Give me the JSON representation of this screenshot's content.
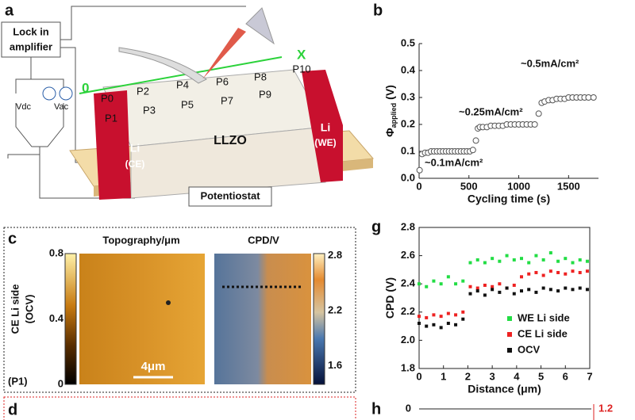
{
  "panel_labels": [
    "a",
    "b",
    "c",
    "g",
    "d",
    "h"
  ],
  "diagram": {
    "lock_in": "Lock in",
    "amplifier": "amplifier",
    "vdc": "Vdc",
    "vac": "Vac",
    "origin": "0",
    "axis": "X",
    "points": [
      "P0",
      "P1",
      "P2",
      "P3",
      "P4",
      "P5",
      "P6",
      "P7",
      "P8",
      "P9",
      "P10"
    ],
    "material": "LLZO",
    "ce": [
      "Li",
      "(CE)"
    ],
    "we": [
      "Li",
      "(WE)"
    ],
    "potentiostat": "Potentiostat"
  },
  "maps": {
    "row_label": [
      "CE Li side",
      "(OCV)"
    ],
    "point": "(P1)",
    "scale_bar": "4μm",
    "topography": {
      "title": "Topography/μm",
      "lim": [
        0,
        0.8
      ],
      "ticks": [
        0.8,
        0.4,
        0
      ]
    },
    "cpd": {
      "title": "CPD/V",
      "lim": [
        1.4,
        2.82
      ],
      "ticks": [
        2.8,
        2.2,
        1.6
      ]
    }
  },
  "panel_h": {
    "left_tick": "0",
    "right_tick": "1.2"
  },
  "chart_data": [
    {
      "type": "scatter",
      "xlabel": "Cycling time (s)",
      "ylabel": [
        "Φ",
        "applied",
        "(V)"
      ],
      "xlim": [
        0,
        1800
      ],
      "xticks": [
        0,
        500,
        1000,
        1500
      ],
      "ylim": [
        0,
        0.5
      ],
      "yticks": [
        {
          "value": 0,
          "label": "0.0"
        },
        0.1,
        0.2,
        0.3,
        0.4,
        0.5
      ],
      "annotations": [
        "~0.1mA/cm²",
        "~0.25mA/cm²",
        "~0.5mA/cm²"
      ],
      "color": "#555555",
      "x": [
        5,
        30,
        60,
        90,
        120,
        150,
        180,
        210,
        240,
        270,
        300,
        330,
        360,
        390,
        420,
        450,
        480,
        510,
        540,
        570,
        590,
        610,
        640,
        680,
        720,
        760,
        800,
        840,
        880,
        920,
        960,
        1000,
        1040,
        1080,
        1120,
        1160,
        1200,
        1230,
        1260,
        1300,
        1340,
        1380,
        1420,
        1460,
        1500,
        1540,
        1580,
        1620,
        1660,
        1700,
        1750
      ],
      "values": [
        0.03,
        0.09,
        0.095,
        0.095,
        0.1,
        0.1,
        0.1,
        0.1,
        0.1,
        0.1,
        0.1,
        0.1,
        0.1,
        0.1,
        0.1,
        0.1,
        0.1,
        0.1,
        0.105,
        0.14,
        0.185,
        0.19,
        0.19,
        0.19,
        0.195,
        0.195,
        0.195,
        0.195,
        0.2,
        0.2,
        0.2,
        0.2,
        0.2,
        0.2,
        0.2,
        0.2,
        0.24,
        0.28,
        0.285,
        0.29,
        0.29,
        0.295,
        0.295,
        0.295,
        0.3,
        0.3,
        0.3,
        0.3,
        0.3,
        0.3,
        0.3
      ]
    },
    {
      "type": "scatter",
      "xlabel": "Distance (μm)",
      "ylabel": [
        "CPD (V)"
      ],
      "xlim": [
        0,
        7
      ],
      "xticks": [
        0,
        1,
        2,
        3,
        4,
        5,
        6,
        7
      ],
      "ylim": [
        1.8,
        2.8
      ],
      "yticks": [
        1.8,
        {
          "value": 2.0,
          "label": "2.0"
        },
        2.2,
        2.4,
        2.6,
        2.8
      ],
      "x": [
        0,
        0.3,
        0.6,
        0.9,
        1.2,
        1.5,
        1.8,
        2.1,
        2.4,
        2.7,
        3.0,
        3.3,
        3.6,
        3.9,
        4.2,
        4.5,
        4.8,
        5.1,
        5.4,
        5.7,
        6.0,
        6.3,
        6.6,
        6.9
      ],
      "series": [
        {
          "name": "WE Li side",
          "color": "#22dd44",
          "values": [
            2.4,
            2.38,
            2.42,
            2.4,
            2.45,
            2.4,
            2.42,
            2.55,
            2.57,
            2.55,
            2.58,
            2.56,
            2.6,
            2.57,
            2.58,
            2.55,
            2.6,
            2.57,
            2.62,
            2.56,
            2.58,
            2.55,
            2.57,
            2.56
          ]
        },
        {
          "name": "CE Li side",
          "color": "#ee2222",
          "values": [
            2.17,
            2.16,
            2.18,
            2.17,
            2.19,
            2.18,
            2.2,
            2.38,
            2.37,
            2.39,
            2.38,
            2.4,
            2.37,
            2.39,
            2.45,
            2.47,
            2.48,
            2.46,
            2.49,
            2.48,
            2.47,
            2.49,
            2.48,
            2.49
          ]
        },
        {
          "name": "OCV",
          "color": "#111111",
          "values": [
            2.12,
            2.1,
            2.11,
            2.09,
            2.12,
            2.11,
            2.15,
            2.33,
            2.35,
            2.32,
            2.36,
            2.34,
            2.37,
            2.33,
            2.35,
            2.36,
            2.34,
            2.37,
            2.36,
            2.35,
            2.37,
            2.36,
            2.37,
            2.36
          ]
        }
      ]
    }
  ]
}
